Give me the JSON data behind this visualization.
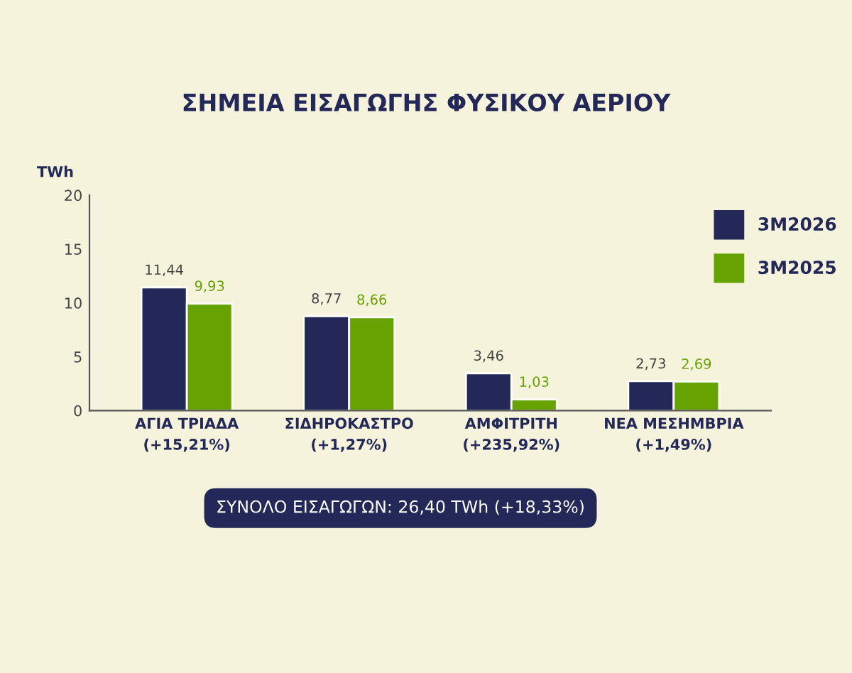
{
  "chart_data": {
    "type": "bar",
    "title": "ΣΗΜΕΙΑ ΕΙΣΑΓΩΓΗΣ ΦΥΣΙΚΟΥ ΑΕΡΙΟΥ",
    "ylabel": "TWh",
    "categories": [
      "ΑΓΙΑ ΤΡΙΑΔΑ\n(+15,21%)",
      "ΣΙΔΗΡΟΚΑΣΤΡΟ\n(+1,27%)",
      "ΑΜΦΙΤΡΙΤΗ\n(+235,92%)",
      "ΝΕΑ ΜΕΣΗΜΒΡΙΑ\n(+1,49%)"
    ],
    "series": [
      {
        "name": "3M2026",
        "color": "#232858",
        "values": [
          11.44,
          8.77,
          3.46,
          2.73
        ],
        "value_labels": [
          "11,44",
          "8,77",
          "3,46",
          "2,73"
        ]
      },
      {
        "name": "3M2025",
        "color": "#67a300",
        "values": [
          9.93,
          8.66,
          1.03,
          2.69
        ],
        "value_labels": [
          "9,93",
          "8,66",
          "1,03",
          "2,69"
        ]
      }
    ],
    "ylim": [
      0,
      20
    ],
    "yticks": [
      0,
      5,
      10,
      15,
      20
    ],
    "grid": false,
    "legend": "top right",
    "annotations": [
      "ΣΥΝΟΛΟ ΕΙΣΑΓΩΓΩΝ: 26,40 TWh (+18,33%)"
    ]
  }
}
